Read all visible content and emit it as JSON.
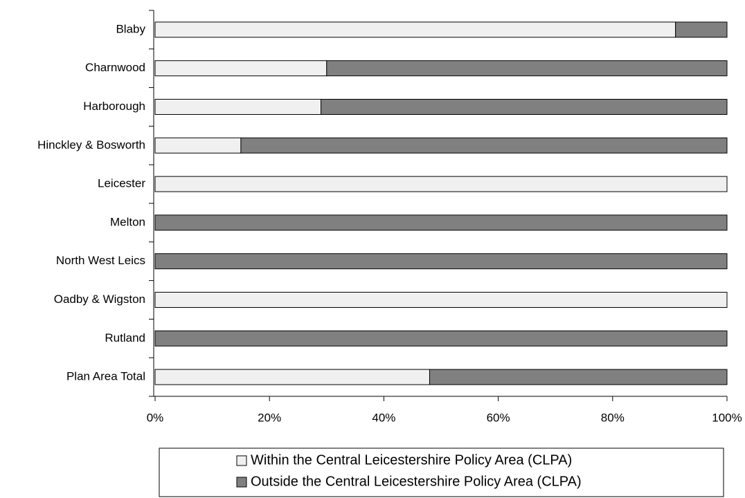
{
  "chart_data": {
    "type": "stacked_barh",
    "categories": [
      "Blaby",
      "Charnwood",
      "Harborough",
      "Hinckley & Bosworth",
      "Leicester",
      "Melton",
      "North West Leics",
      "Oadby & Wigston",
      "Rutland",
      "Plan Area Total"
    ],
    "series": [
      {
        "name": "Within the Central Leicestershire Policy Area (CLPA)",
        "color": "#f0f0f0",
        "values": [
          91,
          30,
          29,
          15,
          100,
          0,
          0,
          100,
          0,
          48
        ]
      },
      {
        "name": "Outside the Central Leicestershire Policy Area (CLPA)",
        "color": "#808080",
        "values": [
          9,
          70,
          71,
          85,
          0,
          100,
          100,
          0,
          100,
          52
        ]
      }
    ],
    "xlim": [
      0,
      100
    ],
    "xticks": [
      {
        "value": 0,
        "label": "0%"
      },
      {
        "value": 20,
        "label": "20%"
      },
      {
        "value": 40,
        "label": "40%"
      },
      {
        "value": 60,
        "label": "60%"
      },
      {
        "value": 80,
        "label": "80%"
      },
      {
        "value": 100,
        "label": "100%"
      }
    ],
    "legend": "bottom"
  }
}
